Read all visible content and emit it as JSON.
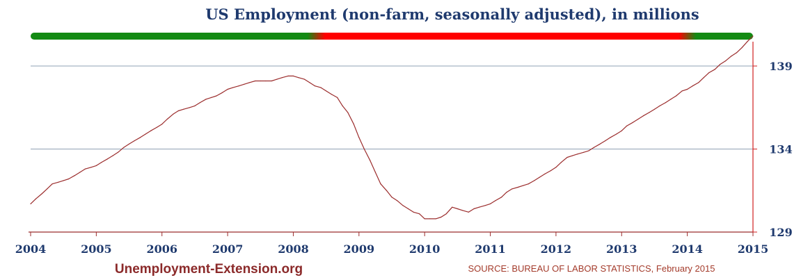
{
  "chart_data": {
    "type": "line",
    "title": "US Employment (non-farm, seasonally adjusted), in millions",
    "xlabel": "",
    "ylabel": "",
    "xlim": [
      2004,
      2015
    ],
    "ylim": [
      129,
      140.8
    ],
    "x_ticks": [
      "2004",
      "2005",
      "2006",
      "2007",
      "2008",
      "2009",
      "2010",
      "2011",
      "2012",
      "2013",
      "2014",
      "2015"
    ],
    "y_ticks": [
      "129",
      "134",
      "139"
    ],
    "y_tick_values": [
      129,
      134,
      139
    ],
    "grid": "horizontal",
    "y_axis_side": "right",
    "line_color": "#9b2c2c",
    "recession_bar": {
      "segments": [
        {
          "start": 2004.0,
          "end": 2008.35,
          "color": "#138a13"
        },
        {
          "start": 2008.35,
          "end": 2014.0,
          "color": "#ff0000"
        },
        {
          "start": 2014.0,
          "end": 2015.0,
          "color": "#138a13"
        }
      ]
    },
    "series": [
      {
        "points": [
          [
            2004.0,
            130.7
          ],
          [
            2004.08,
            131.0
          ],
          [
            2004.17,
            131.3
          ],
          [
            2004.25,
            131.6
          ],
          [
            2004.33,
            131.9
          ],
          [
            2004.42,
            132.0
          ],
          [
            2004.5,
            132.1
          ],
          [
            2004.58,
            132.2
          ],
          [
            2004.67,
            132.4
          ],
          [
            2004.75,
            132.6
          ],
          [
            2004.83,
            132.8
          ],
          [
            2004.92,
            132.9
          ],
          [
            2005.0,
            133.0
          ],
          [
            2005.08,
            133.2
          ],
          [
            2005.17,
            133.4
          ],
          [
            2005.25,
            133.6
          ],
          [
            2005.33,
            133.8
          ],
          [
            2005.42,
            134.1
          ],
          [
            2005.5,
            134.3
          ],
          [
            2005.58,
            134.5
          ],
          [
            2005.67,
            134.7
          ],
          [
            2005.75,
            134.9
          ],
          [
            2005.83,
            135.1
          ],
          [
            2005.92,
            135.3
          ],
          [
            2006.0,
            135.5
          ],
          [
            2006.08,
            135.8
          ],
          [
            2006.17,
            136.1
          ],
          [
            2006.25,
            136.3
          ],
          [
            2006.33,
            136.4
          ],
          [
            2006.42,
            136.5
          ],
          [
            2006.5,
            136.6
          ],
          [
            2006.58,
            136.8
          ],
          [
            2006.67,
            137.0
          ],
          [
            2006.75,
            137.1
          ],
          [
            2006.83,
            137.2
          ],
          [
            2006.92,
            137.4
          ],
          [
            2007.0,
            137.6
          ],
          [
            2007.08,
            137.7
          ],
          [
            2007.17,
            137.8
          ],
          [
            2007.25,
            137.9
          ],
          [
            2007.33,
            138.0
          ],
          [
            2007.42,
            138.1
          ],
          [
            2007.5,
            138.1
          ],
          [
            2007.58,
            138.1
          ],
          [
            2007.67,
            138.1
          ],
          [
            2007.75,
            138.2
          ],
          [
            2007.83,
            138.3
          ],
          [
            2007.92,
            138.4
          ],
          [
            2008.0,
            138.4
          ],
          [
            2008.08,
            138.3
          ],
          [
            2008.17,
            138.2
          ],
          [
            2008.25,
            138.0
          ],
          [
            2008.33,
            137.8
          ],
          [
            2008.42,
            137.7
          ],
          [
            2008.5,
            137.5
          ],
          [
            2008.58,
            137.3
          ],
          [
            2008.67,
            137.1
          ],
          [
            2008.75,
            136.6
          ],
          [
            2008.83,
            136.2
          ],
          [
            2008.92,
            135.5
          ],
          [
            2009.0,
            134.7
          ],
          [
            2009.08,
            134.0
          ],
          [
            2009.17,
            133.3
          ],
          [
            2009.25,
            132.6
          ],
          [
            2009.33,
            131.9
          ],
          [
            2009.42,
            131.5
          ],
          [
            2009.5,
            131.1
          ],
          [
            2009.58,
            130.9
          ],
          [
            2009.67,
            130.6
          ],
          [
            2009.75,
            130.4
          ],
          [
            2009.83,
            130.2
          ],
          [
            2009.92,
            130.1
          ],
          [
            2010.0,
            129.8
          ],
          [
            2010.08,
            129.8
          ],
          [
            2010.17,
            129.8
          ],
          [
            2010.25,
            129.9
          ],
          [
            2010.33,
            130.1
          ],
          [
            2010.42,
            130.5
          ],
          [
            2010.5,
            130.4
          ],
          [
            2010.58,
            130.3
          ],
          [
            2010.67,
            130.2
          ],
          [
            2010.75,
            130.4
          ],
          [
            2010.83,
            130.5
          ],
          [
            2010.92,
            130.6
          ],
          [
            2011.0,
            130.7
          ],
          [
            2011.08,
            130.9
          ],
          [
            2011.17,
            131.1
          ],
          [
            2011.25,
            131.4
          ],
          [
            2011.33,
            131.6
          ],
          [
            2011.42,
            131.7
          ],
          [
            2011.5,
            131.8
          ],
          [
            2011.58,
            131.9
          ],
          [
            2011.67,
            132.1
          ],
          [
            2011.75,
            132.3
          ],
          [
            2011.83,
            132.5
          ],
          [
            2011.92,
            132.7
          ],
          [
            2012.0,
            132.9
          ],
          [
            2012.08,
            133.2
          ],
          [
            2012.17,
            133.5
          ],
          [
            2012.25,
            133.6
          ],
          [
            2012.33,
            133.7
          ],
          [
            2012.42,
            133.8
          ],
          [
            2012.5,
            133.9
          ],
          [
            2012.58,
            134.1
          ],
          [
            2012.67,
            134.3
          ],
          [
            2012.75,
            134.5
          ],
          [
            2012.83,
            134.7
          ],
          [
            2012.92,
            134.9
          ],
          [
            2013.0,
            135.1
          ],
          [
            2013.08,
            135.4
          ],
          [
            2013.17,
            135.6
          ],
          [
            2013.25,
            135.8
          ],
          [
            2013.33,
            136.0
          ],
          [
            2013.42,
            136.2
          ],
          [
            2013.5,
            136.4
          ],
          [
            2013.58,
            136.6
          ],
          [
            2013.67,
            136.8
          ],
          [
            2013.75,
            137.0
          ],
          [
            2013.83,
            137.2
          ],
          [
            2013.92,
            137.5
          ],
          [
            2014.0,
            137.6
          ],
          [
            2014.08,
            137.8
          ],
          [
            2014.17,
            138.0
          ],
          [
            2014.25,
            138.3
          ],
          [
            2014.33,
            138.6
          ],
          [
            2014.42,
            138.8
          ],
          [
            2014.5,
            139.1
          ],
          [
            2014.58,
            139.3
          ],
          [
            2014.67,
            139.6
          ],
          [
            2014.75,
            139.8
          ],
          [
            2014.83,
            140.1
          ],
          [
            2014.92,
            140.5
          ],
          [
            2015.0,
            140.8
          ]
        ]
      }
    ]
  },
  "footer": {
    "brand": "Unemployment-Extension.org",
    "source": "SOURCE: BUREAU OF LABOR STATISTICS, February 2015"
  }
}
